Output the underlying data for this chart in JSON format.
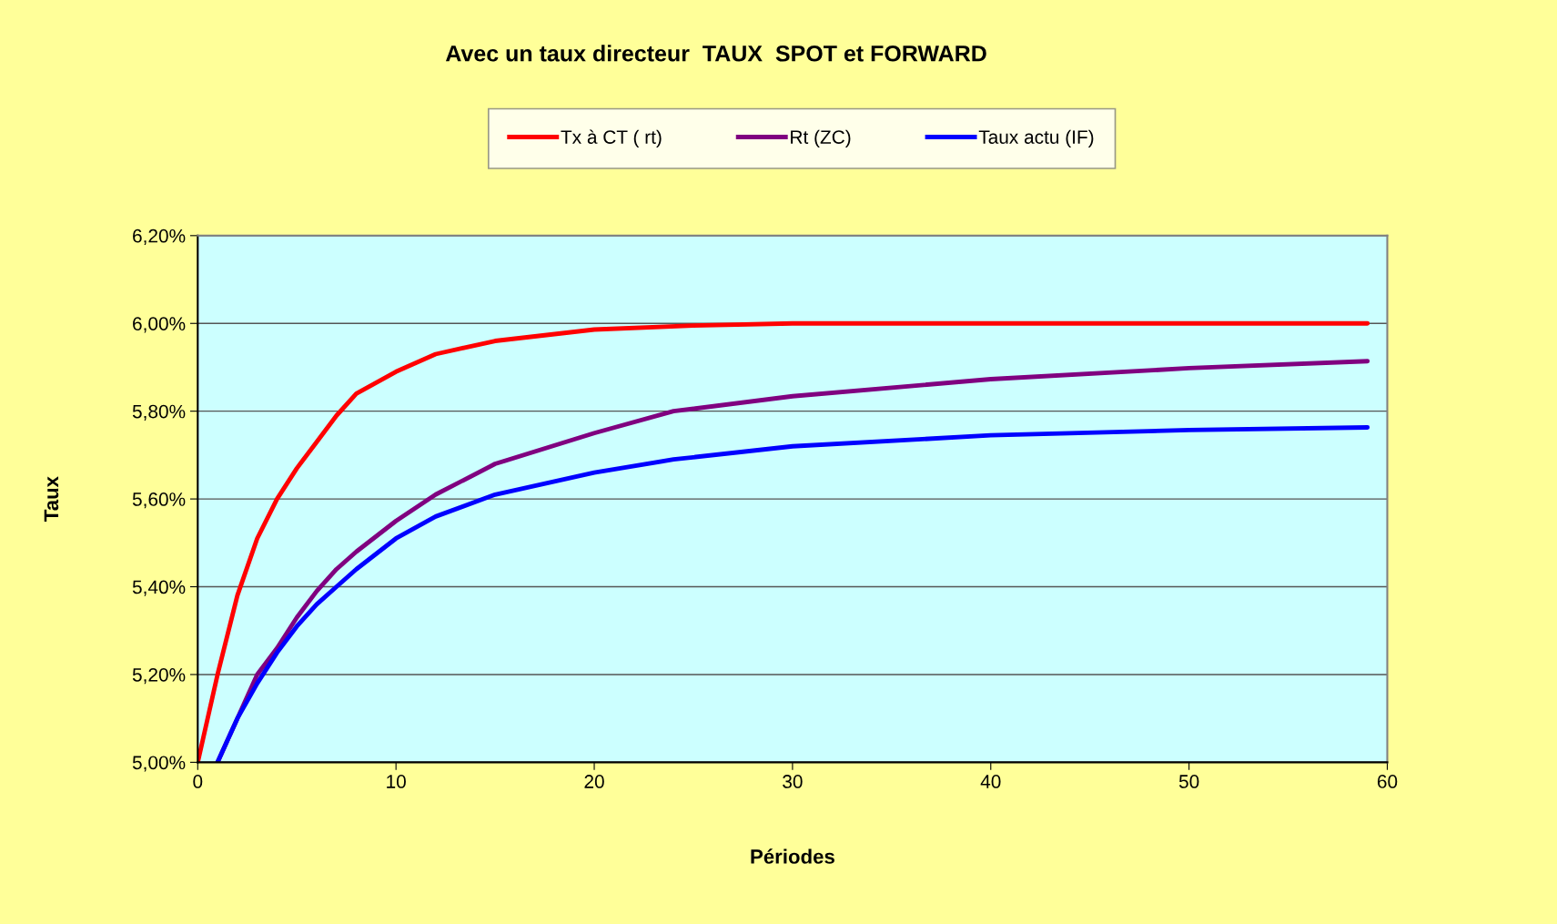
{
  "chart_data": {
    "type": "line",
    "title": "Avec un taux directeur  TAUX  SPOT et FORWARD",
    "xlabel": "Périodes",
    "ylabel": "Taux",
    "xlim": [
      0,
      60
    ],
    "xticks": [
      0,
      10,
      20,
      30,
      40,
      50,
      60
    ],
    "ylim": [
      5.0,
      6.2
    ],
    "yticks": [
      {
        "value": 5.0,
        "label": "5,00%"
      },
      {
        "value": 5.2,
        "label": "5,20%"
      },
      {
        "value": 5.4,
        "label": "5,40%"
      },
      {
        "value": 5.6,
        "label": "5,60%"
      },
      {
        "value": 5.8,
        "label": "5,80%"
      },
      {
        "value": 6.0,
        "label": "6,00%"
      },
      {
        "value": 6.2,
        "label": "6,20%"
      }
    ],
    "grid": "y",
    "legend": "top",
    "marker": "none",
    "line_style": "solid",
    "series": [
      {
        "name": "Tx à CT ( rt)",
        "color": "#ff0000",
        "x": [
          0,
          1,
          2,
          3,
          4,
          5,
          6,
          7,
          8,
          10,
          12,
          15,
          20,
          25,
          30,
          40,
          50,
          59
        ],
        "values": [
          5.0,
          5.2,
          5.38,
          5.51,
          5.6,
          5.67,
          5.73,
          5.79,
          5.84,
          5.89,
          5.93,
          5.96,
          5.986,
          5.995,
          6.0,
          6.0,
          6.0,
          6.0
        ]
      },
      {
        "name": "Rt (ZC)",
        "color": "#800080",
        "x": [
          1,
          2,
          3,
          4,
          5,
          6,
          7,
          8,
          10,
          12,
          15,
          20,
          24,
          30,
          40,
          50,
          59
        ],
        "values": [
          5.0,
          5.1,
          5.2,
          5.26,
          5.33,
          5.39,
          5.44,
          5.48,
          5.55,
          5.61,
          5.68,
          5.75,
          5.8,
          5.834,
          5.873,
          5.898,
          5.914
        ]
      },
      {
        "name": "Taux actu (IF)",
        "color": "#0000ff",
        "x": [
          1,
          2,
          3,
          4,
          5,
          6,
          7,
          8,
          10,
          12,
          15,
          20,
          24,
          30,
          40,
          50,
          59
        ],
        "values": [
          5.0,
          5.1,
          5.18,
          5.25,
          5.31,
          5.36,
          5.4,
          5.44,
          5.51,
          5.56,
          5.61,
          5.66,
          5.69,
          5.72,
          5.745,
          5.757,
          5.763
        ]
      }
    ]
  }
}
